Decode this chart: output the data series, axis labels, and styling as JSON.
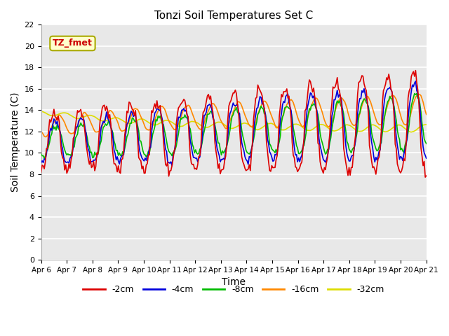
{
  "title": "Tonzi Soil Temperatures Set C",
  "xlabel": "Time",
  "ylabel": "Soil Temperature (C)",
  "ylim": [
    0,
    22
  ],
  "yticks": [
    0,
    2,
    4,
    6,
    8,
    10,
    12,
    14,
    16,
    18,
    20,
    22
  ],
  "date_labels": [
    "Apr 6",
    "Apr 7",
    "Apr 8",
    "Apr 9",
    "Apr 10",
    "Apr 11",
    "Apr 12",
    "Apr 13",
    "Apr 14",
    "Apr 15",
    "Apr 16",
    "Apr 17",
    "Apr 18",
    "Apr 19",
    "Apr 20",
    "Apr 21"
  ],
  "series_colors": [
    "#dd0000",
    "#0000dd",
    "#00bb00",
    "#ff8800",
    "#dddd00"
  ],
  "series_labels": [
    "-2cm",
    "-4cm",
    "-8cm",
    "-16cm",
    "-32cm"
  ],
  "annotation_text": "TZ_fmet",
  "annotation_color": "#cc0000",
  "annotation_bg": "#ffffcc",
  "plot_bg": "#e8e8e8",
  "line_width": 1.2
}
